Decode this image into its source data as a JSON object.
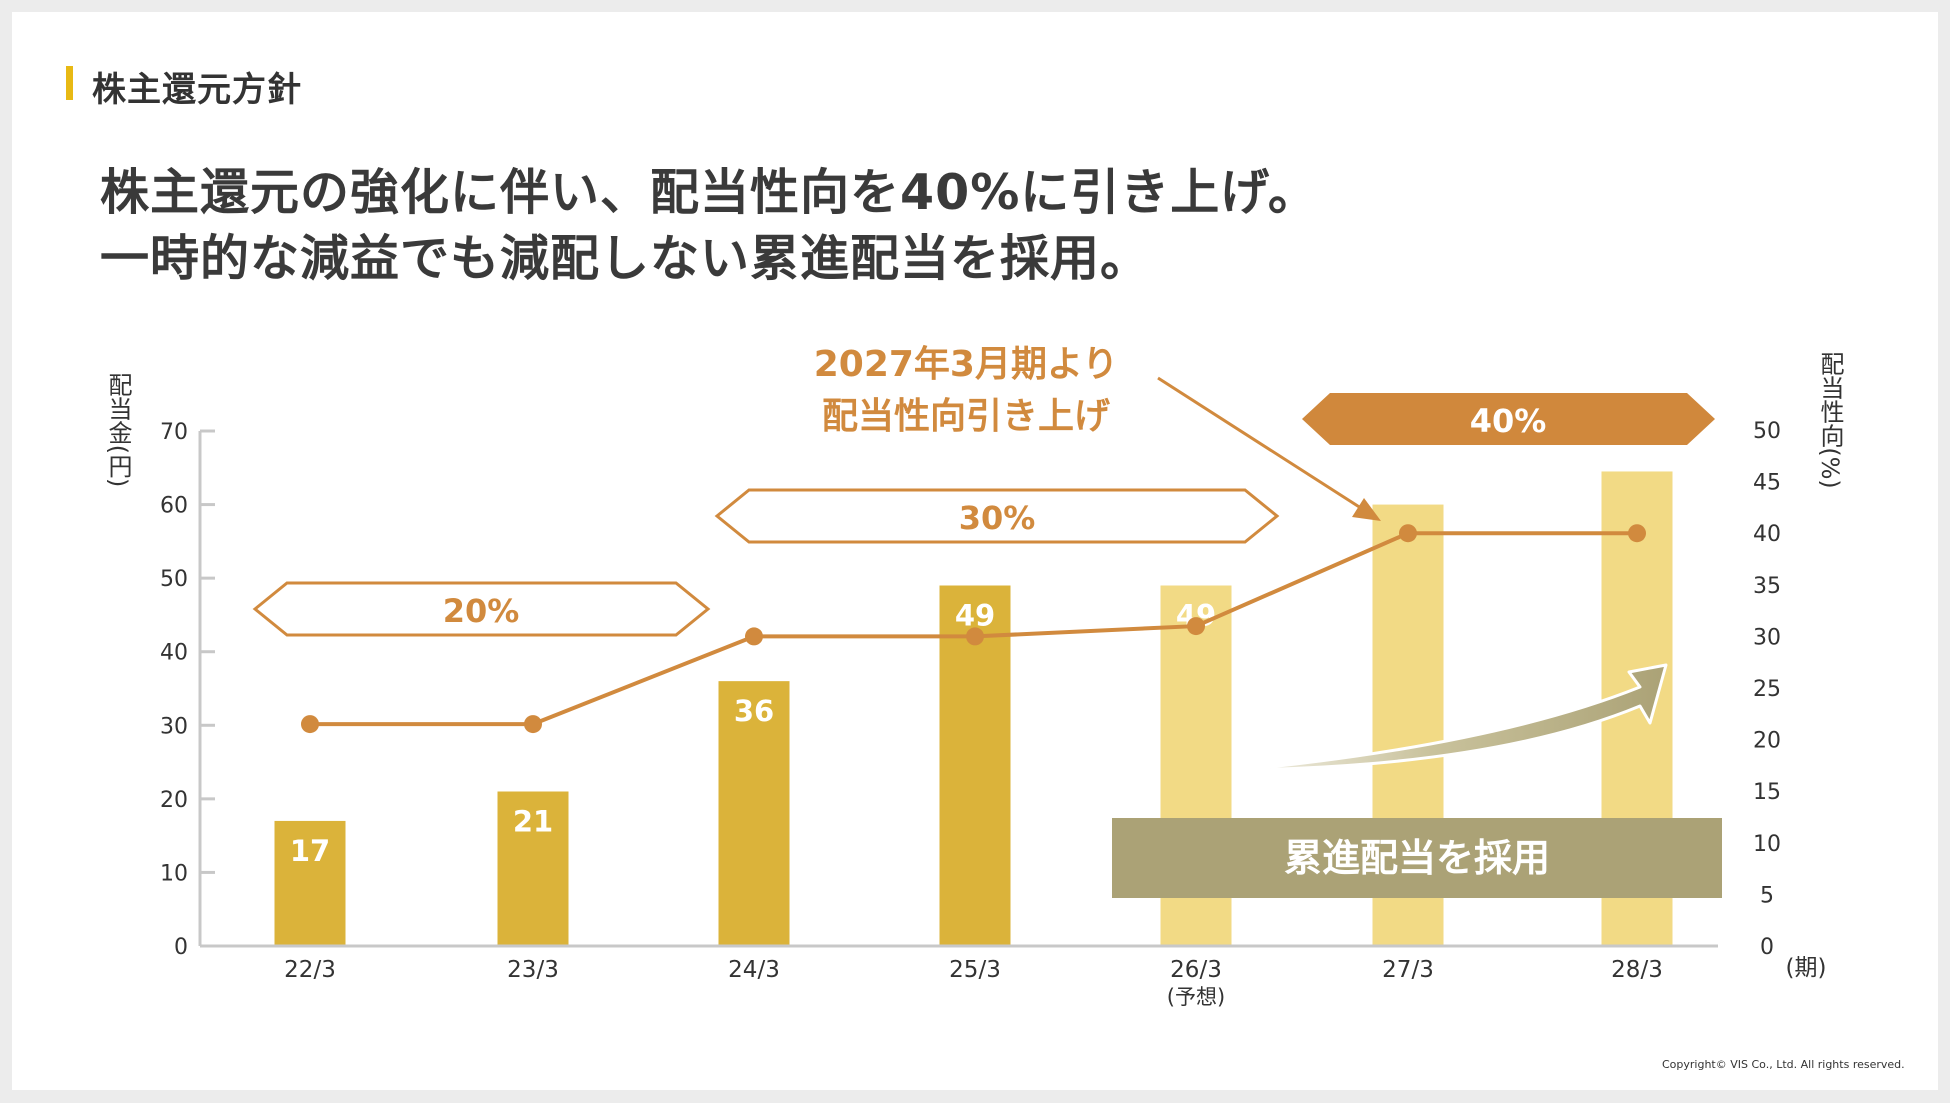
{
  "section_title": "株主還元方針",
  "headline": {
    "line1": "株主還元の強化に伴い、配当性向を40%に引き上げ。",
    "line2": "一時的な減益でも減配しない累進配当を採用。"
  },
  "colors": {
    "bar_actual": "#dbb33a",
    "bar_forecast": "#f2da85",
    "line": "#d18a3e",
    "arrow": "#aba276",
    "banner": "#d0883c"
  },
  "chart_data": {
    "type": "bar",
    "categories": [
      "22/3",
      "23/3",
      "24/3",
      "25/3",
      "26/3",
      "27/3",
      "28/3"
    ],
    "category_notes": [
      "",
      "",
      "",
      "",
      "(予想)",
      "",
      ""
    ],
    "x_unit_label": "(期)",
    "series": [
      {
        "name": "配当金",
        "axis": "left",
        "values": [
          17,
          21,
          36,
          49,
          49,
          60,
          64.5
        ],
        "labels": [
          "17",
          "21",
          "36",
          "49",
          "49",
          "",
          ""
        ],
        "forecast": [
          false,
          false,
          false,
          false,
          true,
          true,
          true
        ]
      },
      {
        "name": "配当性向",
        "axis": "right",
        "type": "line",
        "values": [
          21.5,
          21.5,
          30,
          30,
          31,
          40,
          40
        ]
      }
    ],
    "ylabel_left": "配当金(円)",
    "ylabel_right": "配当性向(%)",
    "y_left": {
      "ticks": [
        "0",
        "10",
        "20",
        "30",
        "40",
        "50",
        "60",
        "70"
      ],
      "ylim": [
        0,
        70
      ]
    },
    "y_right": {
      "ticks": [
        "0",
        "5",
        "10",
        "15",
        "20",
        "25",
        "30",
        "35",
        "40",
        "45",
        "50"
      ],
      "ylim": [
        0,
        50
      ]
    },
    "grid": false,
    "annotations": {
      "payout_20": "20%",
      "payout_30": "30%",
      "payout_40": "40%",
      "raise_note_line1": "2027年3月期より",
      "raise_note_line2": "配当性向引き上げ",
      "progressive": "累進配当を採用"
    }
  },
  "copyright": "Copyright© VIS Co., Ltd. All rights reserved."
}
